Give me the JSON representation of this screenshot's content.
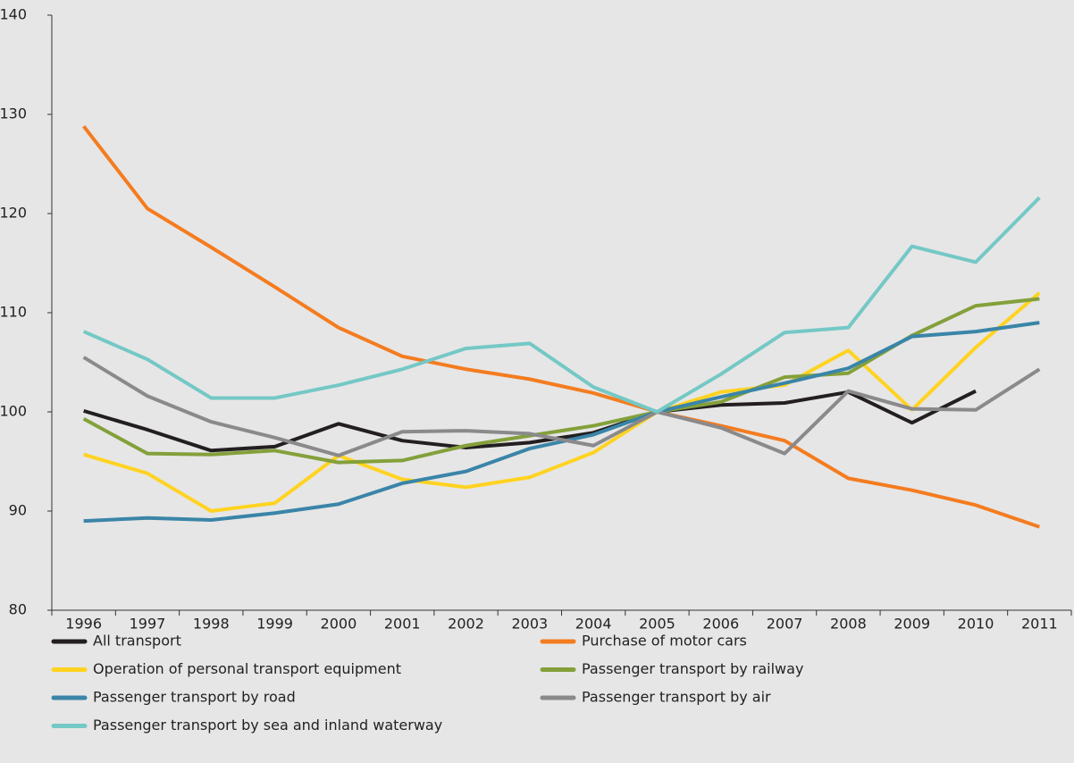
{
  "chart_data": {
    "type": "line",
    "categories": [
      "1996",
      "1997",
      "1998",
      "1999",
      "2000",
      "2001",
      "2002",
      "2003",
      "2004",
      "2005",
      "2006",
      "2007",
      "2008",
      "2009",
      "2010",
      "2011"
    ],
    "ylim": [
      80,
      140
    ],
    "yticks": [
      80,
      90,
      100,
      110,
      120,
      130,
      140
    ],
    "legend": "bottom",
    "series": [
      {
        "name": "All transport",
        "color": "#231f20",
        "values": [
          100.1,
          98.2,
          96.1,
          96.5,
          98.8,
          97.1,
          96.4,
          96.9,
          97.9,
          100,
          100.7,
          100.9,
          102,
          98.9,
          102.1,
          null
        ]
      },
      {
        "name": "Purchase of motor cars",
        "color": "#f47c20",
        "values": [
          128.8,
          120.5,
          116.6,
          112.6,
          108.5,
          105.6,
          104.3,
          103.3,
          101.9,
          100,
          98.6,
          97.1,
          93.3,
          92.1,
          90.6,
          88.4
        ]
      },
      {
        "name": "Operation of personal transport equipment",
        "color": "#ffd320",
        "values": [
          95.7,
          93.8,
          90.0,
          90.8,
          95.6,
          93.2,
          92.4,
          93.4,
          95.9,
          100,
          102.0,
          102.7,
          106.2,
          100.2,
          106.5,
          112.0
        ]
      },
      {
        "name": "Passenger transport by railway",
        "color": "#84a03a",
        "values": [
          99.3,
          95.8,
          95.7,
          96.1,
          94.9,
          95.1,
          96.6,
          97.6,
          98.6,
          100,
          101.0,
          103.5,
          103.9,
          107.7,
          110.7,
          111.4
        ]
      },
      {
        "name": "Passenger transport by road",
        "color": "#3a85a8",
        "values": [
          89.0,
          89.3,
          89.1,
          89.8,
          90.7,
          92.8,
          94.0,
          96.3,
          97.7,
          100,
          101.5,
          102.9,
          104.4,
          107.6,
          108.1,
          109.0
        ]
      },
      {
        "name": "Passenger transport by air",
        "color": "#8a8a8c",
        "values": [
          105.5,
          101.6,
          99.0,
          97.4,
          95.6,
          98.0,
          98.1,
          97.8,
          96.6,
          100,
          98.4,
          95.8,
          102.1,
          100.3,
          100.2,
          104.3
        ]
      },
      {
        "name": "Passenger transport by sea and inland waterway",
        "color": "#74c8c5",
        "values": [
          108.1,
          105.3,
          101.4,
          101.4,
          102.7,
          104.3,
          106.4,
          106.9,
          102.5,
          100,
          103.8,
          108.0,
          108.5,
          116.7,
          115.1,
          121.6
        ]
      }
    ]
  }
}
